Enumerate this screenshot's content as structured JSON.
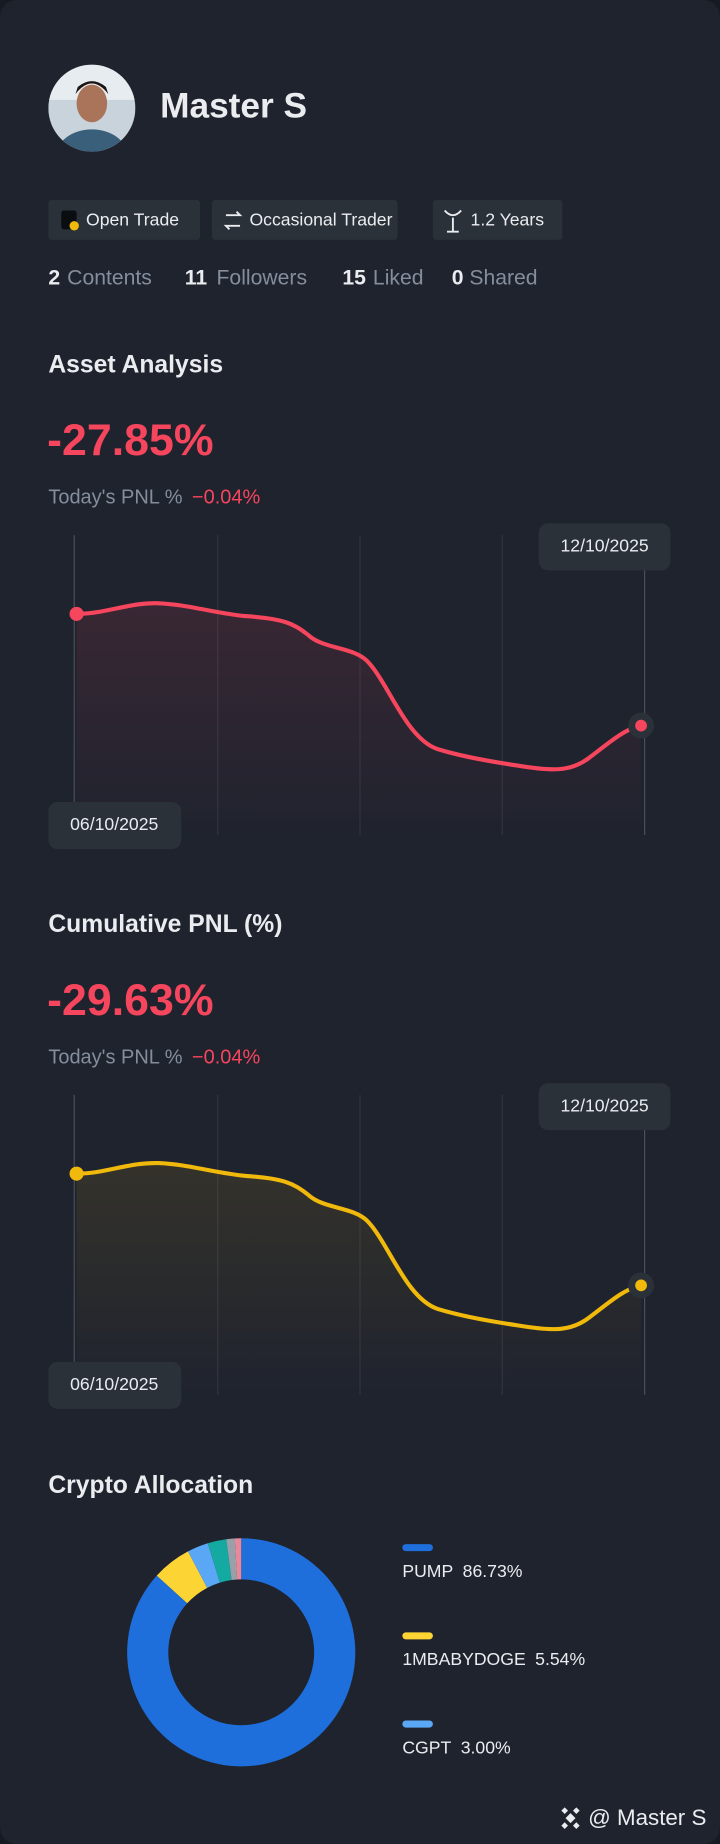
{
  "profile": {
    "name": "Master S",
    "tags": [
      "Open Trade",
      "Occasional Trader",
      "1.2 Years"
    ],
    "stats": [
      {
        "value": "2",
        "label": "Contents"
      },
      {
        "value": "11",
        "label": "Followers"
      },
      {
        "value": "15",
        "label": "Liked"
      },
      {
        "value": "0",
        "label": "Shared"
      }
    ]
  },
  "asset_analysis": {
    "title": "Asset Analysis",
    "value": "-27.85%",
    "today_label": "Today's PNL %",
    "today_value": "−0.04%",
    "start_date": "06/10/2025",
    "end_date": "12/10/2025"
  },
  "cumulative_pnl": {
    "title": "Cumulative PNL (%)",
    "value": "-29.63%",
    "today_label": "Today's PNL %",
    "today_value": "−0.04%",
    "start_date": "06/10/2025",
    "end_date": "12/10/2025"
  },
  "chart_data": {
    "type": "pie",
    "title": "Crypto Allocation",
    "donut": true,
    "categories": [
      "PUMP",
      "1MBABYDOGE",
      "CGPT",
      null,
      null,
      null
    ],
    "values": [
      86.73,
      5.54,
      3.0,
      2.63,
      1.2,
      0.9
    ],
    "value_labels": [
      "86.73%",
      "5.54%",
      "3.00%",
      null,
      null,
      null
    ],
    "colors": [
      "#1e6fdc",
      "#fcd535",
      "#5aa7f5",
      "#14a9a1",
      "#9aa0aa",
      "#e8899a"
    ]
  },
  "footer": {
    "watermark": "@ Master S"
  }
}
